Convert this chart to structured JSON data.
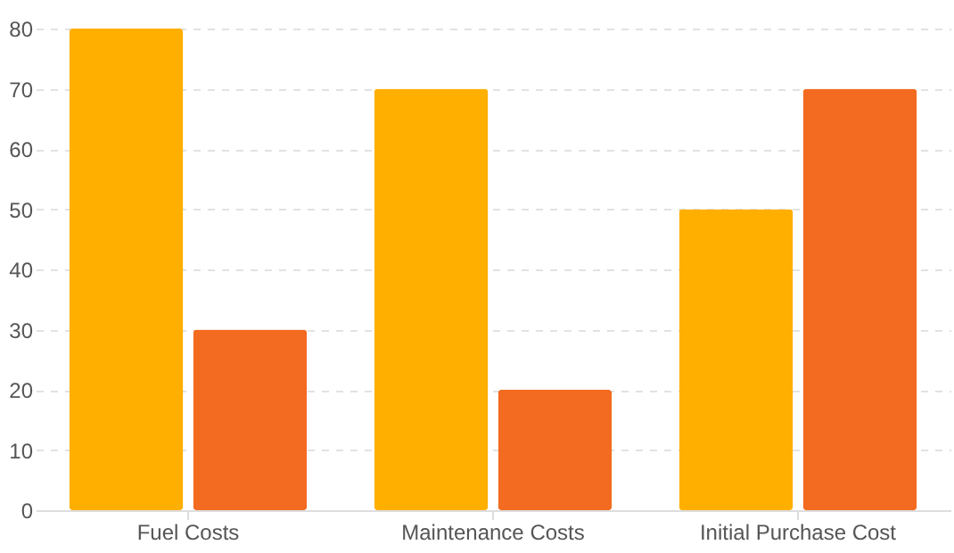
{
  "chart_data": {
    "type": "bar",
    "categories": [
      "Fuel Costs",
      "Maintenance Costs",
      "Initial Purchase Cost"
    ],
    "series": [
      {
        "color": "#ffaf00",
        "values": [
          80,
          70,
          50
        ]
      },
      {
        "color": "#f26b21",
        "values": [
          30,
          20,
          70
        ]
      }
    ],
    "ylim": [
      0,
      80
    ],
    "yticks": [
      0,
      10,
      20,
      30,
      40,
      50,
      60,
      70,
      80
    ],
    "grid": "y",
    "legend": false
  }
}
